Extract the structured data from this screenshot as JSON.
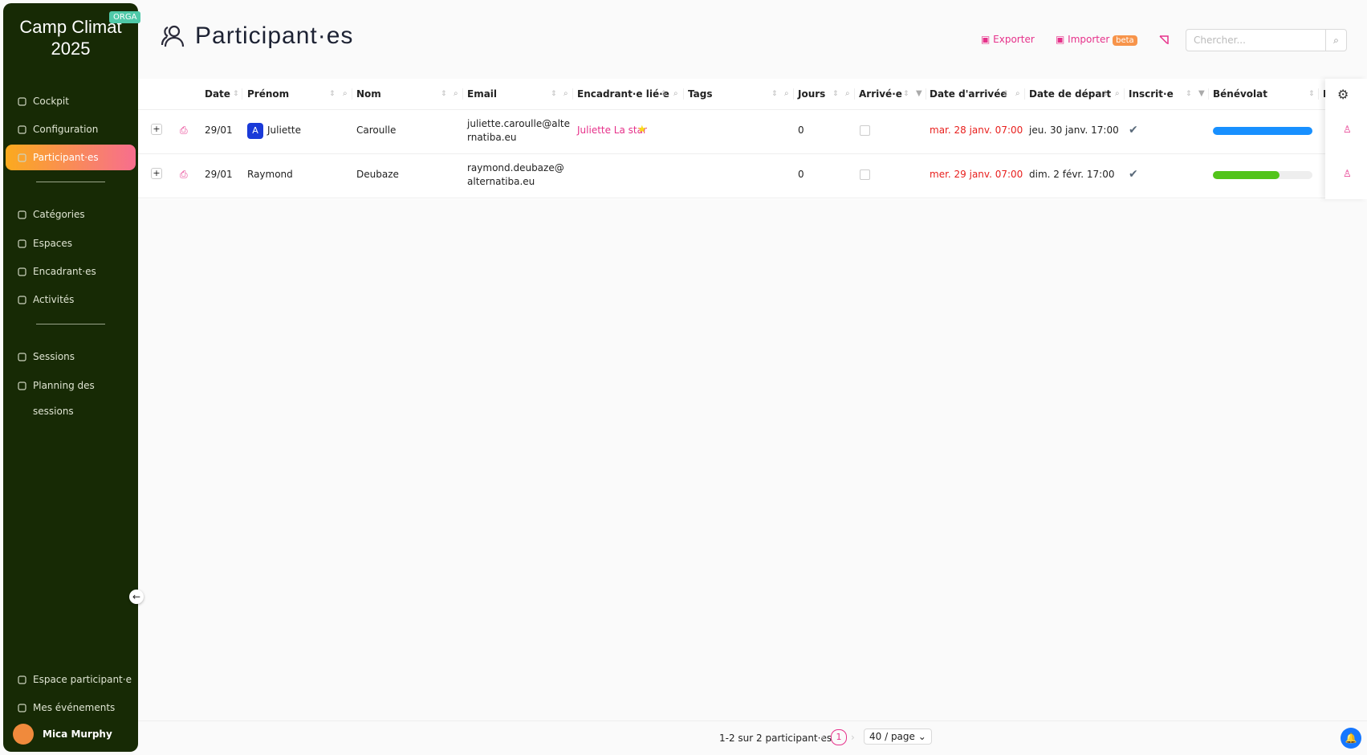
{
  "sidebar": {
    "title": "Camp Climat 2025",
    "badge": "ORGA",
    "menu": [
      "Cockpit",
      "Configuration",
      "Participant·es"
    ],
    "menu_2": [
      "Catégories",
      "Espaces",
      "Encadrant·es",
      "Activités"
    ],
    "menu_3": [
      "Sessions",
      "Planning des sessions"
    ],
    "bottom": [
      "Espace participant·e",
      "Mes événements"
    ],
    "user": "Mica Murphy"
  },
  "header": {
    "title": "Participant·es",
    "export": "Exporter",
    "import": "Importer",
    "beta": "beta",
    "search_placeholder": "Chercher..."
  },
  "table": {
    "columns": [
      "Date",
      "Prénom",
      "Nom",
      "Email",
      "Encadrant·e lié·e",
      "Tags",
      "Jours",
      "Arrivé·e",
      "Date d'arrivée",
      "Date de départ",
      "Inscrit·e",
      "Bénévolat",
      "D"
    ],
    "rows": [
      {
        "date": "29/01",
        "avatar": "A",
        "first_name": "Juliette",
        "last_name": "Caroulle",
        "email": "juliette.caroulle@alternatiba.eu",
        "supervisor": "Juliette La star",
        "days": 0,
        "arrival": "mar. 28 janv. 07:00",
        "departure": "jeu. 30 janv. 17:00",
        "volunteering": 100,
        "volunteering_color": "#1890ff"
      },
      {
        "date": "29/01",
        "first_name": "Raymond",
        "last_name": "Deubaze",
        "email": "raymond.deubaze@alternatiba.eu",
        "days": 0,
        "arrival": "mer. 29 janv. 07:00",
        "departure": "dim. 2 févr. 17:00",
        "volunteering": 67,
        "volunteering_color": "#52c41a"
      }
    ]
  },
  "footer": {
    "summary": "1-2 sur 2 participant·es",
    "page": "1",
    "page_size": "40 / page"
  }
}
